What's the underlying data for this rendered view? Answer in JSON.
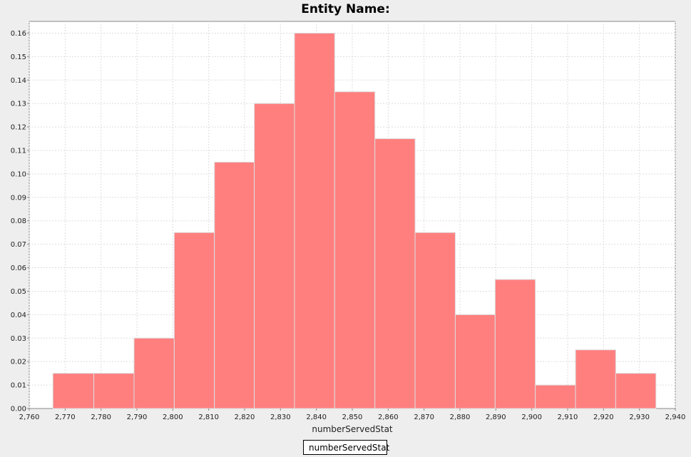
{
  "chart_data": {
    "type": "bar",
    "title": "Entity Name:",
    "xlabel": "numberServedStat",
    "ylabel": "",
    "xlim": [
      2760,
      2940
    ],
    "ylim": [
      0,
      0.165
    ],
    "grid": true,
    "legend_position": "bottom-center",
    "x_ticks": [
      "2,760",
      "2,770",
      "2,780",
      "2,790",
      "2,800",
      "2,810",
      "2,820",
      "2,830",
      "2,840",
      "2,850",
      "2,860",
      "2,870",
      "2,880",
      "2,890",
      "2,900",
      "2,910",
      "2,920",
      "2,930",
      "2,940"
    ],
    "y_ticks": [
      "0.00",
      "0.01",
      "0.02",
      "0.03",
      "0.04",
      "0.05",
      "0.06",
      "0.07",
      "0.08",
      "0.09",
      "0.10",
      "0.11",
      "0.12",
      "0.13",
      "0.14",
      "0.15",
      "0.16"
    ],
    "series": [
      {
        "name": "numberServedStat",
        "color": "#ff7f7f",
        "bins": [
          {
            "x0": 2766.6,
            "x1": 2778.0,
            "y": 0.015
          },
          {
            "x0": 2778.0,
            "x1": 2789.2,
            "y": 0.015
          },
          {
            "x0": 2789.2,
            "x1": 2800.4,
            "y": 0.03
          },
          {
            "x0": 2800.4,
            "x1": 2811.6,
            "y": 0.075
          },
          {
            "x0": 2811.6,
            "x1": 2822.7,
            "y": 0.105
          },
          {
            "x0": 2822.7,
            "x1": 2833.9,
            "y": 0.13
          },
          {
            "x0": 2833.9,
            "x1": 2845.1,
            "y": 0.16
          },
          {
            "x0": 2845.1,
            "x1": 2856.3,
            "y": 0.135
          },
          {
            "x0": 2856.3,
            "x1": 2867.5,
            "y": 0.115
          },
          {
            "x0": 2867.5,
            "x1": 2878.7,
            "y": 0.075
          },
          {
            "x0": 2878.7,
            "x1": 2889.8,
            "y": 0.04
          },
          {
            "x0": 2889.8,
            "x1": 2901.0,
            "y": 0.055
          },
          {
            "x0": 2901.0,
            "x1": 2912.2,
            "y": 0.01
          },
          {
            "x0": 2912.2,
            "x1": 2923.4,
            "y": 0.025
          },
          {
            "x0": 2923.4,
            "x1": 2934.6,
            "y": 0.015
          }
        ]
      }
    ]
  }
}
